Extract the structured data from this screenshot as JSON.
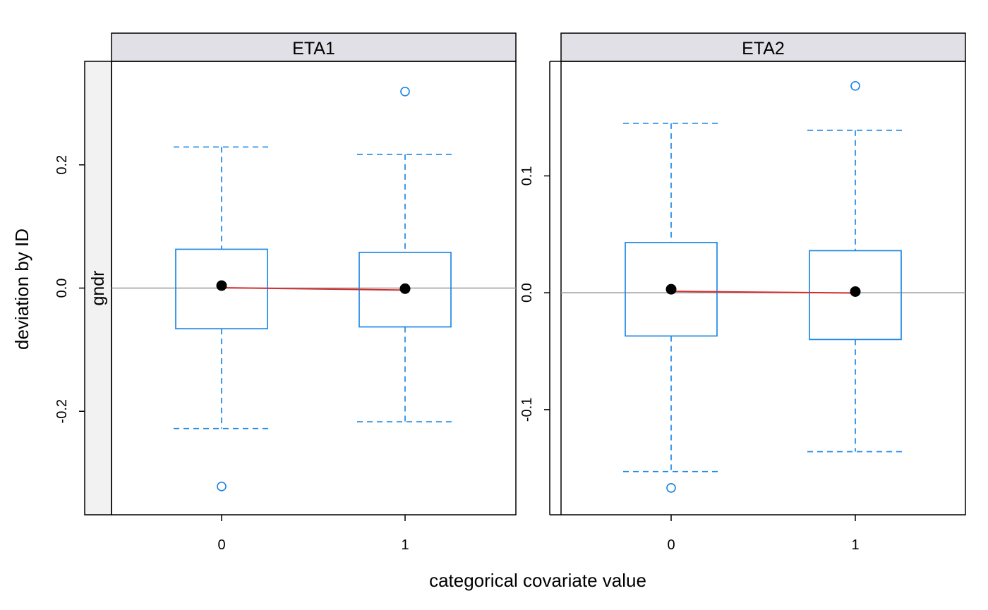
{
  "chart_data": {
    "type": "boxplot",
    "xlabel": "categorical covariate value",
    "ylabel": "deviation by ID",
    "strip_variable": "gndr",
    "categories": [
      "0",
      "1"
    ],
    "colors": {
      "box": "#1e88e5",
      "mean_point": "#000000",
      "mean_line": "#d32f2f",
      "reference_line": "#999999",
      "strip_fill": "#e0e0e6",
      "side_strip_fill": "#f2f2f2"
    },
    "panels": [
      {
        "title": "ETA1",
        "ylim": [
          -0.368,
          0.368
        ],
        "yticks": [
          -0.2,
          0.0,
          0.2
        ],
        "ytick_labels": [
          "-0.2",
          "0.0",
          "0.2"
        ],
        "boxes": [
          {
            "category": "0",
            "whisker_low": -0.228,
            "q1": -0.066,
            "q3": 0.063,
            "whisker_high": 0.229,
            "outliers": [
              -0.322
            ],
            "mean": 0.004
          },
          {
            "category": "1",
            "whisker_low": -0.217,
            "q1": -0.063,
            "q3": 0.058,
            "whisker_high": 0.217,
            "outliers": [
              0.319
            ],
            "mean": -0.001
          }
        ]
      },
      {
        "title": "ETA2",
        "ylim": [
          -0.19,
          0.198
        ],
        "yticks": [
          -0.1,
          0.0,
          0.1
        ],
        "ytick_labels": [
          "-0.1",
          "0.0",
          "0.1"
        ],
        "boxes": [
          {
            "category": "0",
            "whisker_low": -0.153,
            "q1": -0.037,
            "q3": 0.043,
            "whisker_high": 0.145,
            "outliers": [
              -0.167
            ],
            "mean": 0.003
          },
          {
            "category": "1",
            "whisker_low": -0.136,
            "q1": -0.04,
            "q3": 0.036,
            "whisker_high": 0.139,
            "outliers": [
              0.177
            ],
            "mean": 0.001
          }
        ]
      }
    ]
  }
}
